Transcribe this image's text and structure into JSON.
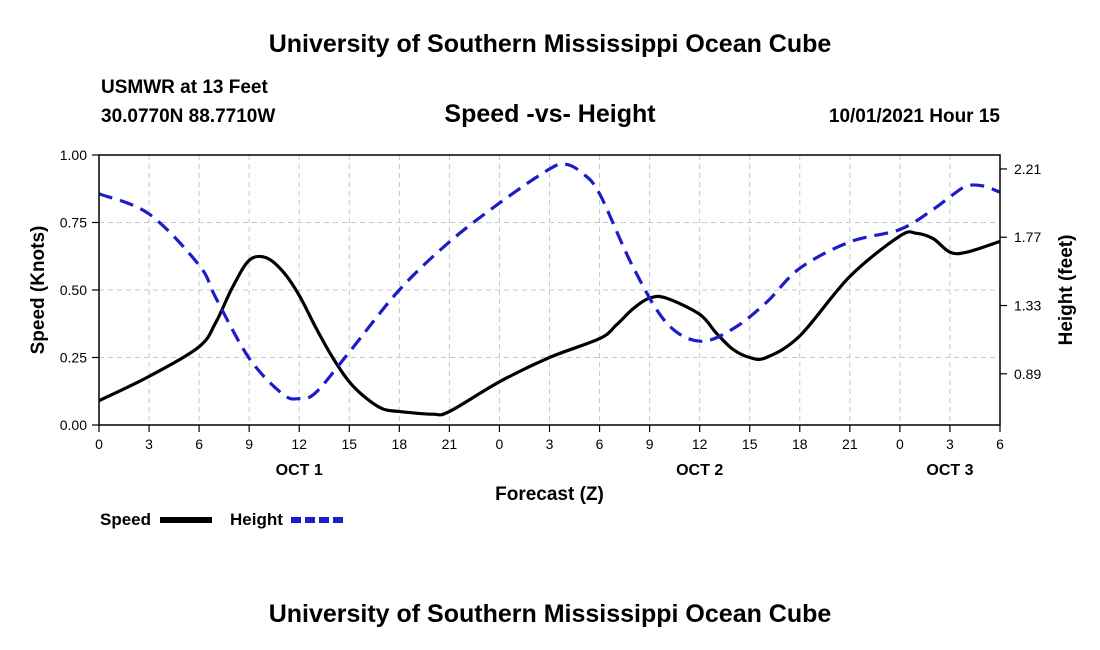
{
  "header": {
    "title": "University of Southern Mississippi Ocean Cube",
    "station_name": "USMWR at 13 Feet",
    "station_coords": "30.0770N  88.7710W",
    "subtitle": "Speed -vs- Height",
    "date": "10/01/2021 Hour 15"
  },
  "footer": {
    "title": "University of Southern Mississippi Ocean Cube"
  },
  "chart_data": {
    "type": "line",
    "xlabel": "Forecast (Z)",
    "ylabel": "Speed (Knots)",
    "y2label": "Height (feet)",
    "xlim": [
      0,
      54
    ],
    "ylim": [
      0,
      1
    ],
    "y2lim": [
      0.56,
      2.3
    ],
    "grid": true,
    "x_ticks": [
      0,
      3,
      6,
      9,
      12,
      15,
      18,
      21,
      24,
      27,
      30,
      33,
      36,
      39,
      42,
      45,
      48,
      51,
      54
    ],
    "x_tick_labels": [
      "0",
      "3",
      "6",
      "9",
      "12",
      "15",
      "18",
      "21",
      "0",
      "3",
      "6",
      "9",
      "12",
      "15",
      "18",
      "21",
      "0",
      "3",
      "6"
    ],
    "y_ticks": [
      0,
      0.25,
      0.5,
      0.75,
      1.0
    ],
    "y_tick_labels": [
      "0.00",
      "0.25",
      "0.50",
      "0.75",
      "1.00"
    ],
    "y2_ticks": [
      0.89,
      1.33,
      1.77,
      2.21
    ],
    "y2_tick_labels": [
      "0.89",
      "1.33",
      "1.77",
      "2.21"
    ],
    "day_labels": [
      {
        "x": 12,
        "label": "OCT 1"
      },
      {
        "x": 36,
        "label": "OCT 2"
      },
      {
        "x": 51,
        "label": "OCT 3"
      }
    ],
    "series": [
      {
        "name": "Speed",
        "axis": "left",
        "color": "#000000",
        "style": "solid",
        "x": [
          0,
          3,
          6,
          7,
          8,
          9,
          10,
          11,
          12,
          13,
          14,
          15,
          16,
          17,
          18,
          20,
          21,
          24,
          27,
          30,
          31,
          32,
          33,
          34,
          36,
          37,
          38,
          39,
          40,
          42,
          45,
          48,
          49,
          50,
          51,
          52,
          54
        ],
        "y": [
          0.09,
          0.18,
          0.29,
          0.38,
          0.51,
          0.61,
          0.62,
          0.57,
          0.48,
          0.36,
          0.25,
          0.16,
          0.1,
          0.06,
          0.05,
          0.04,
          0.05,
          0.16,
          0.25,
          0.32,
          0.37,
          0.43,
          0.47,
          0.47,
          0.41,
          0.34,
          0.28,
          0.25,
          0.25,
          0.33,
          0.55,
          0.7,
          0.71,
          0.69,
          0.64,
          0.64,
          0.68
        ]
      },
      {
        "name": "Height",
        "axis": "right",
        "color": "#1c1cc8",
        "style": "dashed",
        "x": [
          0,
          3,
          6,
          7,
          9,
          11,
          12,
          13,
          15,
          18,
          21,
          24,
          27,
          28,
          29,
          30,
          32,
          34,
          36,
          38,
          40,
          42,
          45,
          48,
          50,
          51,
          52,
          53,
          54
        ],
        "y": [
          2.05,
          1.92,
          1.59,
          1.38,
          0.99,
          0.76,
          0.73,
          0.77,
          1.03,
          1.43,
          1.74,
          1.99,
          2.21,
          2.24,
          2.18,
          2.05,
          1.58,
          1.22,
          1.1,
          1.18,
          1.35,
          1.57,
          1.74,
          1.82,
          1.95,
          2.03,
          2.1,
          2.1,
          2.06
        ]
      }
    ],
    "legend_position": "bottom-left"
  }
}
